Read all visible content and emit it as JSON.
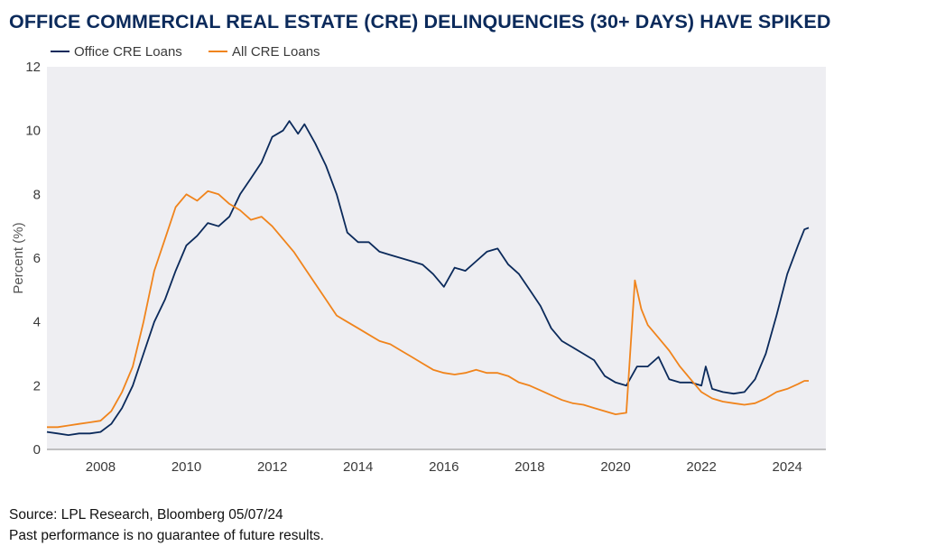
{
  "title": "OFFICE COMMERCIAL REAL ESTATE (CRE) DELINQUENCIES (30+ DAYS) HAVE SPIKED",
  "source": "Source: LPL Research, Bloomberg 05/07/24",
  "disclaimer": "Past performance is no guarantee of future results.",
  "chart_data": {
    "type": "line",
    "title": "OFFICE COMMERCIAL REAL ESTATE (CRE) DELINQUENCIES (30+ DAYS) HAVE SPIKED",
    "ylabel": "Percent (%)",
    "xlabel": "",
    "xlim": [
      2006.75,
      2024.9
    ],
    "ylim": [
      0,
      12
    ],
    "x_ticks": [
      2008,
      2010,
      2012,
      2014,
      2016,
      2018,
      2020,
      2022,
      2024
    ],
    "y_ticks": [
      0,
      2,
      4,
      6,
      8,
      10,
      12
    ],
    "grid": false,
    "background": "#eeeef2",
    "legend": "top-left",
    "series": [
      {
        "name": "Office CRE Loans",
        "color": "#0b2a5b",
        "points": [
          [
            2006.75,
            0.55
          ],
          [
            2007.0,
            0.5
          ],
          [
            2007.25,
            0.45
          ],
          [
            2007.5,
            0.5
          ],
          [
            2007.75,
            0.5
          ],
          [
            2008.0,
            0.55
          ],
          [
            2008.25,
            0.8
          ],
          [
            2008.5,
            1.3
          ],
          [
            2008.75,
            2.0
          ],
          [
            2009.0,
            3.0
          ],
          [
            2009.25,
            4.0
          ],
          [
            2009.5,
            4.7
          ],
          [
            2009.75,
            5.6
          ],
          [
            2010.0,
            6.4
          ],
          [
            2010.25,
            6.7
          ],
          [
            2010.5,
            7.1
          ],
          [
            2010.75,
            7.0
          ],
          [
            2011.0,
            7.3
          ],
          [
            2011.25,
            8.0
          ],
          [
            2011.5,
            8.5
          ],
          [
            2011.75,
            9.0
          ],
          [
            2012.0,
            9.8
          ],
          [
            2012.25,
            10.0
          ],
          [
            2012.4,
            10.3
          ],
          [
            2012.6,
            9.9
          ],
          [
            2012.75,
            10.2
          ],
          [
            2013.0,
            9.6
          ],
          [
            2013.25,
            8.9
          ],
          [
            2013.5,
            8.0
          ],
          [
            2013.75,
            6.8
          ],
          [
            2014.0,
            6.5
          ],
          [
            2014.25,
            6.5
          ],
          [
            2014.5,
            6.2
          ],
          [
            2014.75,
            6.1
          ],
          [
            2015.0,
            6.0
          ],
          [
            2015.25,
            5.9
          ],
          [
            2015.5,
            5.8
          ],
          [
            2015.75,
            5.5
          ],
          [
            2016.0,
            5.1
          ],
          [
            2016.25,
            5.7
          ],
          [
            2016.5,
            5.6
          ],
          [
            2016.75,
            5.9
          ],
          [
            2017.0,
            6.2
          ],
          [
            2017.25,
            6.3
          ],
          [
            2017.5,
            5.8
          ],
          [
            2017.75,
            5.5
          ],
          [
            2018.0,
            5.0
          ],
          [
            2018.25,
            4.5
          ],
          [
            2018.5,
            3.8
          ],
          [
            2018.75,
            3.4
          ],
          [
            2019.0,
            3.2
          ],
          [
            2019.25,
            3.0
          ],
          [
            2019.5,
            2.8
          ],
          [
            2019.75,
            2.3
          ],
          [
            2020.0,
            2.1
          ],
          [
            2020.25,
            2.0
          ],
          [
            2020.5,
            2.6
          ],
          [
            2020.75,
            2.6
          ],
          [
            2021.0,
            2.9
          ],
          [
            2021.25,
            2.2
          ],
          [
            2021.5,
            2.1
          ],
          [
            2021.75,
            2.1
          ],
          [
            2022.0,
            2.0
          ],
          [
            2022.1,
            2.6
          ],
          [
            2022.25,
            1.9
          ],
          [
            2022.5,
            1.8
          ],
          [
            2022.75,
            1.75
          ],
          [
            2023.0,
            1.8
          ],
          [
            2023.25,
            2.2
          ],
          [
            2023.5,
            3.0
          ],
          [
            2023.75,
            4.2
          ],
          [
            2024.0,
            5.5
          ],
          [
            2024.25,
            6.4
          ],
          [
            2024.4,
            6.9
          ],
          [
            2024.5,
            6.95
          ]
        ]
      },
      {
        "name": "All CRE Loans",
        "color": "#f0841c",
        "points": [
          [
            2006.75,
            0.7
          ],
          [
            2007.0,
            0.7
          ],
          [
            2007.25,
            0.75
          ],
          [
            2007.5,
            0.8
          ],
          [
            2007.75,
            0.85
          ],
          [
            2008.0,
            0.9
          ],
          [
            2008.25,
            1.2
          ],
          [
            2008.5,
            1.8
          ],
          [
            2008.75,
            2.6
          ],
          [
            2009.0,
            4.0
          ],
          [
            2009.25,
            5.6
          ],
          [
            2009.5,
            6.6
          ],
          [
            2009.75,
            7.6
          ],
          [
            2010.0,
            8.0
          ],
          [
            2010.25,
            7.8
          ],
          [
            2010.5,
            8.1
          ],
          [
            2010.75,
            8.0
          ],
          [
            2011.0,
            7.7
          ],
          [
            2011.25,
            7.5
          ],
          [
            2011.5,
            7.2
          ],
          [
            2011.75,
            7.3
          ],
          [
            2012.0,
            7.0
          ],
          [
            2012.25,
            6.6
          ],
          [
            2012.5,
            6.2
          ],
          [
            2012.75,
            5.7
          ],
          [
            2013.0,
            5.2
          ],
          [
            2013.25,
            4.7
          ],
          [
            2013.5,
            4.2
          ],
          [
            2013.75,
            4.0
          ],
          [
            2014.0,
            3.8
          ],
          [
            2014.25,
            3.6
          ],
          [
            2014.5,
            3.4
          ],
          [
            2014.75,
            3.3
          ],
          [
            2015.0,
            3.1
          ],
          [
            2015.25,
            2.9
          ],
          [
            2015.5,
            2.7
          ],
          [
            2015.75,
            2.5
          ],
          [
            2016.0,
            2.4
          ],
          [
            2016.25,
            2.35
          ],
          [
            2016.5,
            2.4
          ],
          [
            2016.75,
            2.5
          ],
          [
            2017.0,
            2.4
          ],
          [
            2017.25,
            2.4
          ],
          [
            2017.5,
            2.3
          ],
          [
            2017.75,
            2.1
          ],
          [
            2018.0,
            2.0
          ],
          [
            2018.25,
            1.85
          ],
          [
            2018.5,
            1.7
          ],
          [
            2018.75,
            1.55
          ],
          [
            2019.0,
            1.45
          ],
          [
            2019.25,
            1.4
          ],
          [
            2019.5,
            1.3
          ],
          [
            2019.75,
            1.2
          ],
          [
            2020.0,
            1.1
          ],
          [
            2020.25,
            1.15
          ],
          [
            2020.45,
            5.3
          ],
          [
            2020.6,
            4.4
          ],
          [
            2020.75,
            3.9
          ],
          [
            2021.0,
            3.5
          ],
          [
            2021.25,
            3.1
          ],
          [
            2021.5,
            2.6
          ],
          [
            2021.75,
            2.2
          ],
          [
            2022.0,
            1.8
          ],
          [
            2022.25,
            1.6
          ],
          [
            2022.5,
            1.5
          ],
          [
            2022.75,
            1.45
          ],
          [
            2023.0,
            1.4
          ],
          [
            2023.25,
            1.45
          ],
          [
            2023.5,
            1.6
          ],
          [
            2023.75,
            1.8
          ],
          [
            2024.0,
            1.9
          ],
          [
            2024.25,
            2.05
          ],
          [
            2024.4,
            2.15
          ],
          [
            2024.5,
            2.15
          ]
        ]
      }
    ]
  }
}
